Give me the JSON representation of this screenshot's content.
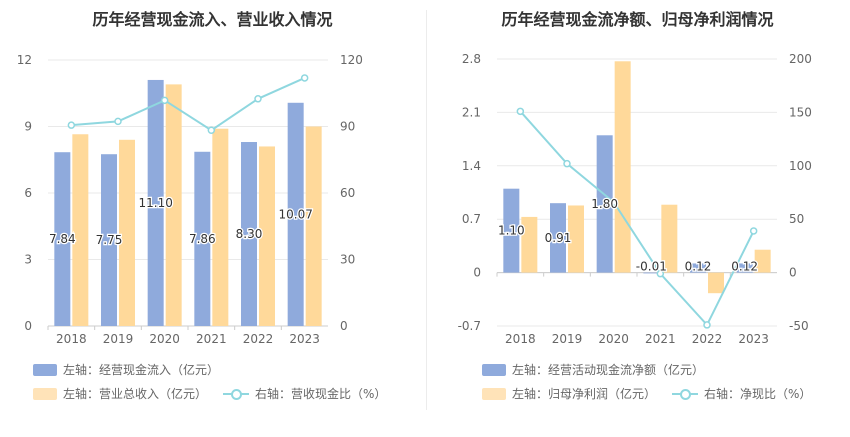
{
  "colors": {
    "blue": "#8faadc",
    "orange": "#ffd99a",
    "line": "#8fd7df",
    "grid": "#e9e9e9",
    "axis_text": "#666666"
  },
  "left": {
    "title": "历年经营现金流入、营业收入情况",
    "legend": [
      {
        "label": "左轴：经营现金流入（亿元）",
        "kind": "bar",
        "color": "#8faadc"
      },
      {
        "label": "左轴：营业总收入（亿元）",
        "kind": "bar",
        "color": "#ffe3b8"
      },
      {
        "label": "右轴：营收现金比（%）",
        "kind": "line",
        "color": "#8fd7df"
      }
    ]
  },
  "right": {
    "title": "历年经营现金流净额、归母净利润情况",
    "legend": [
      {
        "label": "左轴：经营活动现金流净额（亿元）",
        "kind": "bar",
        "color": "#8faadc"
      },
      {
        "label": "左轴：归母净利润（亿元）",
        "kind": "bar",
        "color": "#ffe3b8"
      },
      {
        "label": "右轴：净现比（%）",
        "kind": "line",
        "color": "#8fd7df"
      }
    ]
  },
  "chart_data": [
    {
      "type": "bar",
      "title": "历年经营现金流入、营业收入情况",
      "categories": [
        "2018",
        "2019",
        "2020",
        "2021",
        "2022",
        "2023"
      ],
      "ylim": [
        0,
        12
      ],
      "yticks": [
        "0",
        "3",
        "6",
        "9",
        "12"
      ],
      "y2lim": [
        0,
        120
      ],
      "y2ticks": [
        "0",
        "30",
        "60",
        "90",
        "120"
      ],
      "series": [
        {
          "name": "左轴：经营现金流入（亿元）",
          "type": "bar",
          "axis": "left",
          "values": [
            7.84,
            7.75,
            11.1,
            7.86,
            8.3,
            10.07
          ],
          "labels": [
            "7.84",
            "7.75",
            "11.10",
            "7.86",
            "8.30",
            "10.07"
          ]
        },
        {
          "name": "左轴：营业总收入（亿元）",
          "type": "bar",
          "axis": "left",
          "values": [
            8.65,
            8.4,
            10.9,
            8.9,
            8.1,
            9.0
          ]
        },
        {
          "name": "右轴：营收现金比（%）",
          "type": "line",
          "axis": "right",
          "values": [
            90.6,
            92.3,
            101.8,
            88.3,
            102.5,
            111.9
          ]
        }
      ]
    },
    {
      "type": "bar",
      "title": "历年经营现金流净额、归母净利润情况",
      "categories": [
        "2018",
        "2019",
        "2020",
        "2021",
        "2022",
        "2023"
      ],
      "ylim": [
        -0.7,
        2.8
      ],
      "yticks": [
        "-0.7",
        "0",
        "0.7",
        "1.4",
        "2.1",
        "2.8"
      ],
      "y2lim": [
        -50,
        200
      ],
      "y2ticks": [
        "-50",
        "0",
        "50",
        "100",
        "150",
        "200"
      ],
      "series": [
        {
          "name": "左轴：经营活动现金流净额（亿元）",
          "type": "bar",
          "axis": "left",
          "values": [
            1.1,
            0.91,
            1.8,
            -0.01,
            0.12,
            0.12
          ],
          "labels": [
            "1.10",
            "0.91",
            "1.80",
            "-0.01",
            "0.12",
            "0.12"
          ]
        },
        {
          "name": "左轴：归母净利润（亿元）",
          "type": "bar",
          "axis": "left",
          "values": [
            0.73,
            0.88,
            2.77,
            0.89,
            -0.27,
            0.3
          ]
        },
        {
          "name": "右轴：净现比（%）",
          "type": "line",
          "axis": "right",
          "values": [
            151,
            102,
            66,
            -1,
            -49,
            39
          ]
        }
      ]
    }
  ]
}
